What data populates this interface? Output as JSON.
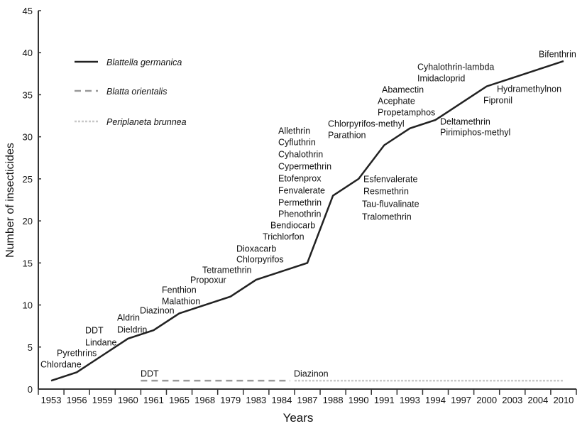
{
  "chart_data": {
    "type": "line",
    "xlabel": "Years",
    "ylabel": "Number of insecticides",
    "ylim": [
      0,
      45
    ],
    "yticks": [
      0,
      5,
      10,
      15,
      20,
      25,
      30,
      35,
      40,
      45
    ],
    "categories": [
      "1953",
      "1956",
      "1959",
      "1960",
      "1961",
      "1965",
      "1968",
      "1979",
      "1983",
      "1984",
      "1987",
      "1988",
      "1990",
      "1991",
      "1993",
      "1994",
      "1997",
      "2000",
      "2003",
      "2004",
      "2010"
    ],
    "grid": false,
    "legend_position": "top-left",
    "series": [
      {
        "name": "Blattella germanica",
        "style": "solid",
        "color": "#222222",
        "values": [
          1,
          2,
          4,
          6,
          7,
          9,
          10,
          11,
          13,
          14,
          15,
          23,
          25,
          29,
          31,
          32,
          34,
          36,
          37,
          38,
          39
        ]
      },
      {
        "name": "Blatta orientalis",
        "style": "dashed",
        "color": "#999999",
        "start": "1961",
        "end": "1987",
        "value": 1
      },
      {
        "name": "Periplaneta brunnea",
        "style": "dotted",
        "color": "#c8c8c8",
        "start": "1987",
        "end": "2010",
        "value": 1
      }
    ],
    "annotations": [
      "Chlordane",
      "Pyrethrins",
      "DDT",
      "Lindane",
      "Aldrin",
      "Dieldrin",
      "Diazinon",
      "Fenthion",
      "Malathion",
      "Propoxur",
      "Tetramethrin",
      "Dioxacarb",
      "Chlorpyrifos",
      "Trichlorfon",
      "Bendiocarb",
      "Allethrin",
      "Cyfluthrin",
      "Cyhalothrin",
      "Cypermethrin",
      "Etofenprox",
      "Fenvalerate",
      "Permethrin",
      "Phenothrin",
      "Chlorpyrifos-methyl",
      "Parathion",
      "Esfenvalerate",
      "Resmethrin",
      "Tau-fluvalinate",
      "Tralomethrin",
      "Acephate",
      "Propetamphos",
      "Abamectin",
      "Imidacloprid",
      "Cyhalothrin-lambda",
      "Deltamethrin",
      "Pirimiphos-methyl",
      "Fipronil",
      "Hydramethylnon",
      "Bifenthrin",
      "DDT",
      "Diazinon"
    ]
  }
}
